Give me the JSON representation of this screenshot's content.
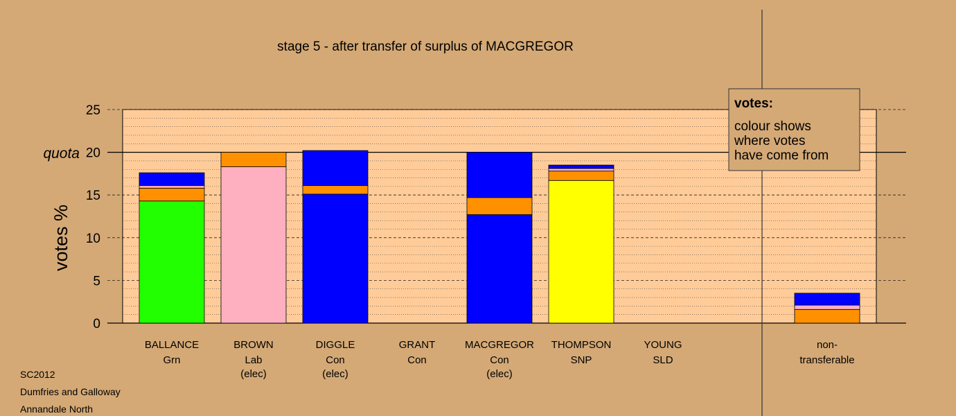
{
  "chart_data": {
    "type": "bar",
    "stacked": true,
    "title": "stage 5 - after transfer of surplus of MACGREGOR",
    "ylabel": "votes %",
    "ylim": [
      0,
      25
    ],
    "yticks": [
      0,
      5,
      10,
      15,
      20,
      25
    ],
    "quota": {
      "label": "quota",
      "value": 20
    },
    "grid": true,
    "colors": {
      "Grn": "#22ff00",
      "Lab": "#ffb0c0",
      "Con": "#0000ff",
      "SNP": "#ffff00",
      "SLD": "#ff9100"
    },
    "candidates": [
      {
        "name": "BALLANCE",
        "party": "Grn",
        "status": "",
        "segments": [
          {
            "from": "Grn",
            "value": 14.3
          },
          {
            "from": "SLD",
            "value": 1.5
          },
          {
            "from": "Lab",
            "value": 0.3
          },
          {
            "from": "Con",
            "value": 1.5
          }
        ]
      },
      {
        "name": "BROWN",
        "party": "Lab",
        "status": "(elec)",
        "segments": [
          {
            "from": "Lab",
            "value": 18.3
          },
          {
            "from": "SLD",
            "value": 1.7
          }
        ]
      },
      {
        "name": "DIGGLE",
        "party": "Con",
        "status": "(elec)",
        "segments": [
          {
            "from": "Con",
            "value": 15.1
          },
          {
            "from": "SLD",
            "value": 1.0
          },
          {
            "from": "Con",
            "value": 4.1
          }
        ]
      },
      {
        "name": "GRANT",
        "party": "Con",
        "status": "",
        "segments": []
      },
      {
        "name": "MACGREGOR",
        "party": "Con",
        "status": "(elec)",
        "segments": [
          {
            "from": "Con",
            "value": 12.7
          },
          {
            "from": "SLD",
            "value": 2.0
          },
          {
            "from": "Con",
            "value": 5.3
          }
        ]
      },
      {
        "name": "THOMPSON",
        "party": "SNP",
        "status": "",
        "segments": [
          {
            "from": "SNP",
            "value": 16.7
          },
          {
            "from": "SLD",
            "value": 1.1
          },
          {
            "from": "Lab",
            "value": 0.3
          },
          {
            "from": "Con",
            "value": 0.4
          }
        ]
      },
      {
        "name": "YOUNG",
        "party": "SLD",
        "status": "",
        "segments": []
      }
    ],
    "nontransferable": {
      "label_line1": "non-",
      "label_line2": "transferable",
      "segments": [
        {
          "from": "SLD",
          "value": 1.6
        },
        {
          "from": "Lab",
          "value": 0.5
        },
        {
          "from": "Con",
          "value": 1.4
        }
      ]
    }
  },
  "legend": {
    "heading": "votes:",
    "lines": [
      "colour shows",
      "where votes",
      "have come from"
    ]
  },
  "footer": {
    "election": "SC2012",
    "council": "Dumfries and Galloway",
    "ward": "Annandale North"
  }
}
